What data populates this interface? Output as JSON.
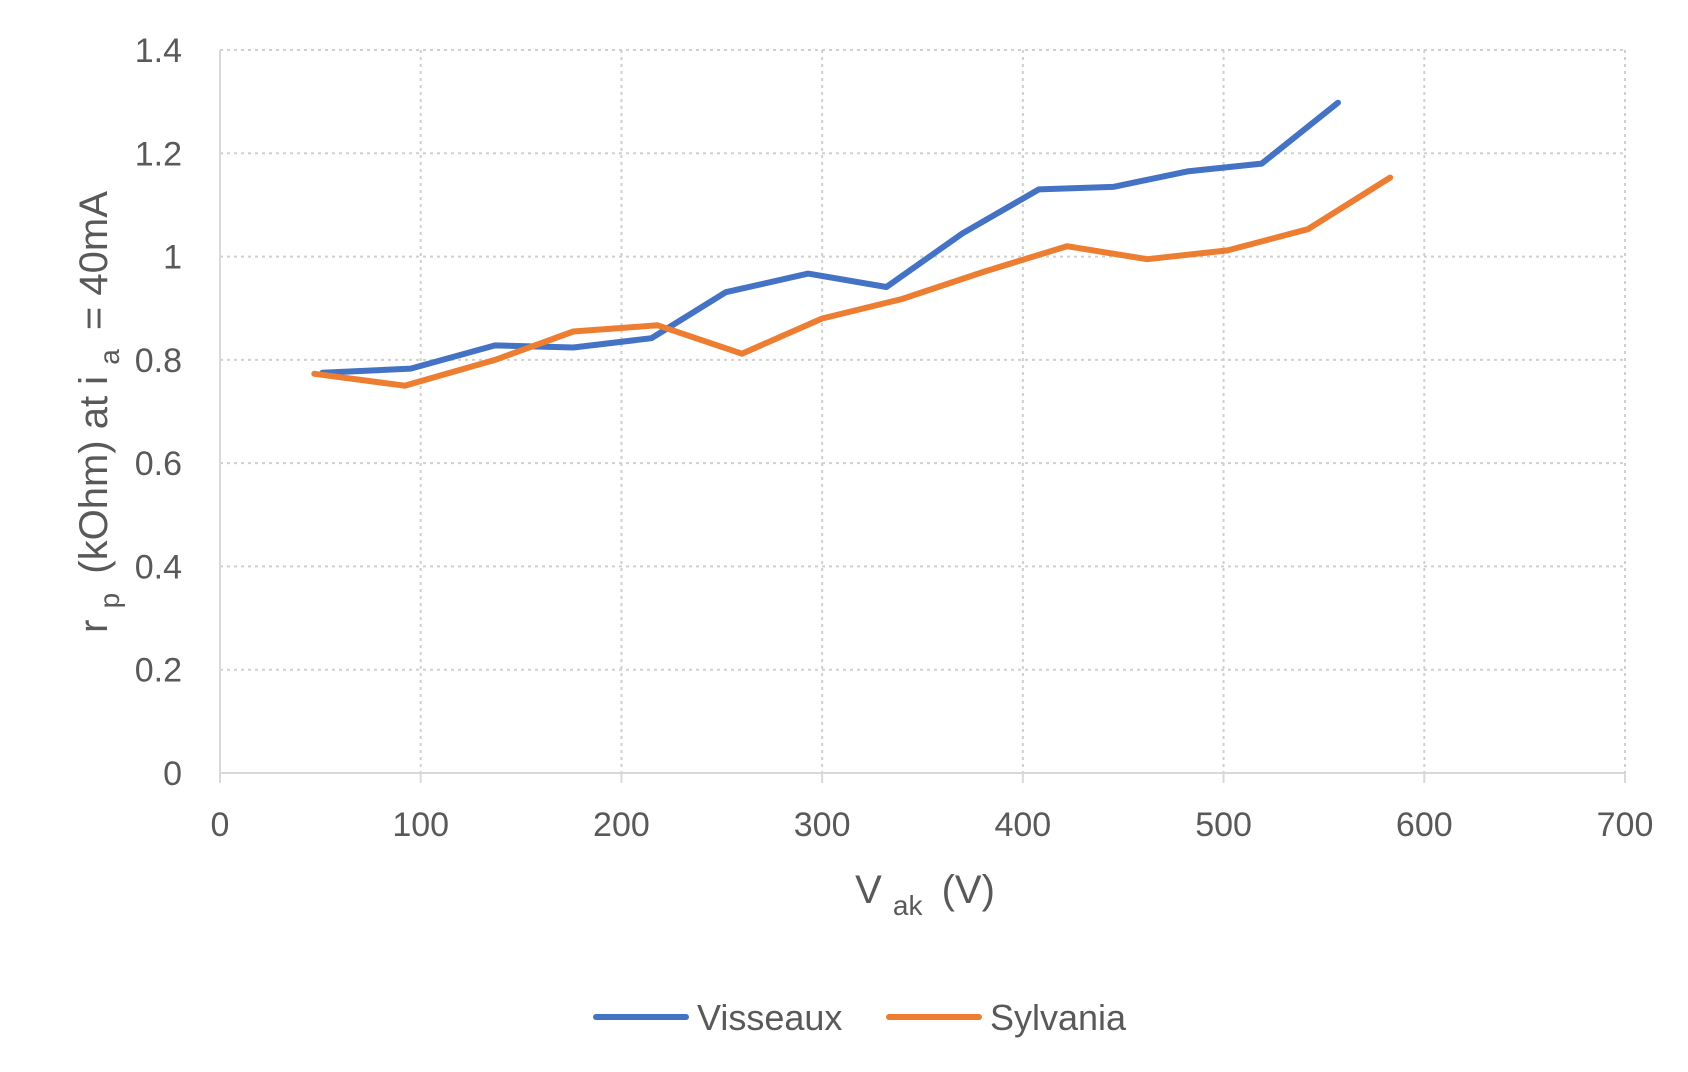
{
  "chart_data": {
    "type": "line",
    "title": "",
    "xlabel": {
      "main": "V",
      "sub": "ak",
      "tail": "(V)"
    },
    "ylabel": {
      "part1": "r",
      "sub1": "p",
      "part2": "(kOhm) at i",
      "sub2": "a",
      "part3": "= 40mA"
    },
    "xlim": [
      0,
      700
    ],
    "ylim": [
      0,
      1.4
    ],
    "x_ticks": [
      0,
      100,
      200,
      300,
      400,
      500,
      600,
      700
    ],
    "y_ticks": [
      0,
      0.2,
      0.4,
      0.6,
      0.8,
      1,
      1.2,
      1.4
    ],
    "x_tick_labels": [
      "0",
      "100",
      "200",
      "300",
      "400",
      "500",
      "600",
      "700"
    ],
    "y_tick_labels": [
      "0",
      "0.2",
      "0.4",
      "0.6",
      "0.8",
      "1",
      "1.2",
      "1.4"
    ],
    "grid": true,
    "legend_position": "bottom",
    "series": [
      {
        "name": "Visseaux",
        "color": "#4472C4",
        "x": [
          51,
          95,
          137,
          176,
          215,
          252,
          293,
          332,
          370,
          408,
          445,
          482,
          519,
          557
        ],
        "y": [
          0.775,
          0.783,
          0.828,
          0.824,
          0.842,
          0.931,
          0.967,
          0.941,
          1.045,
          1.13,
          1.135,
          1.165,
          1.18,
          1.298
        ]
      },
      {
        "name": "Sylvania",
        "color": "#ED7D31",
        "x": [
          47,
          92,
          137,
          176,
          218,
          260,
          300,
          340,
          380,
          422,
          462,
          502,
          542,
          583
        ],
        "y": [
          0.773,
          0.75,
          0.8,
          0.855,
          0.867,
          0.812,
          0.88,
          0.918,
          0.97,
          1.02,
          0.995,
          1.012,
          1.053,
          1.153
        ]
      }
    ]
  }
}
